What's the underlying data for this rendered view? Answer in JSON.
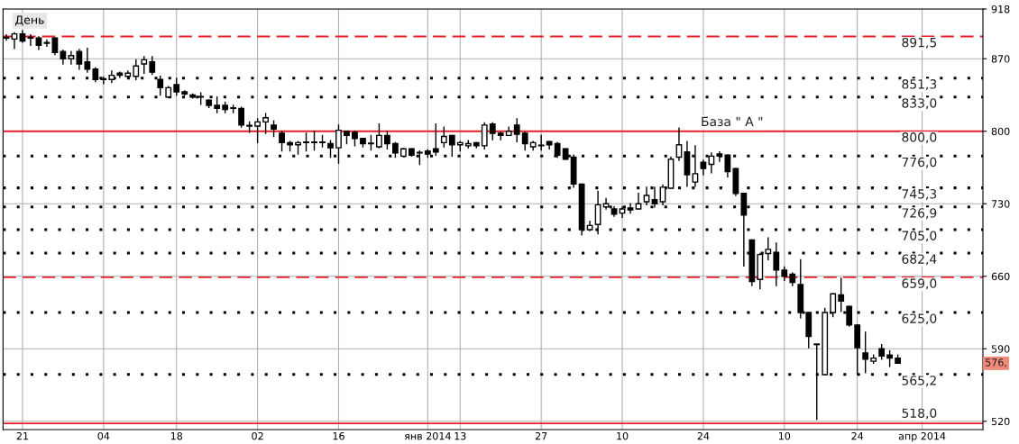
{
  "chart_data": {
    "type": "candlestick",
    "title": "День",
    "categories": [
      null,
      null,
      "21",
      null,
      null,
      null,
      null,
      null,
      null,
      null,
      null,
      null,
      "04",
      null,
      null,
      null,
      null,
      null,
      null,
      null,
      null,
      "18",
      null,
      null,
      null,
      null,
      null,
      null,
      null,
      null,
      null,
      "02",
      null,
      null,
      null,
      null,
      null,
      null,
      null,
      null,
      null,
      "16",
      null,
      null,
      null,
      null,
      null,
      null,
      null,
      null,
      null,
      null,
      "янв 2014",
      null,
      null,
      null,
      "13",
      null,
      null,
      null,
      null,
      null,
      null,
      null,
      null,
      null,
      "27",
      null,
      null,
      null,
      null,
      null,
      null,
      null,
      null,
      null,
      "10",
      null,
      null,
      null,
      null,
      null,
      null,
      null,
      null,
      null,
      "24",
      null,
      null,
      null,
      null,
      null,
      null,
      null,
      null,
      null,
      "10",
      null,
      null,
      null,
      null,
      null,
      null,
      null,
      null,
      "24",
      null,
      null,
      null,
      null,
      null,
      null,
      null,
      "апр 2014",
      null,
      null,
      null,
      null,
      null,
      null,
      null
    ],
    "ohlc": [
      [
        890,
        893,
        888,
        890
      ],
      [
        889,
        895,
        880,
        894
      ],
      [
        894,
        897,
        886,
        887
      ],
      [
        890,
        893,
        883,
        890
      ],
      [
        890,
        891,
        879,
        883
      ],
      [
        885,
        888,
        882,
        885
      ],
      [
        890,
        890,
        874,
        876
      ],
      [
        877,
        878,
        865,
        870
      ],
      [
        870,
        877,
        865,
        873
      ],
      [
        877,
        879,
        860,
        865
      ],
      [
        867,
        880,
        857,
        860
      ],
      [
        860,
        861,
        848,
        850
      ],
      [
        850,
        852,
        846,
        850
      ],
      [
        850,
        858,
        847,
        854
      ],
      [
        856,
        857,
        852,
        854
      ],
      [
        853,
        858,
        852,
        856
      ],
      [
        853,
        869,
        850,
        863
      ],
      [
        865,
        872,
        856,
        869
      ],
      [
        867,
        872,
        855,
        857
      ],
      [
        850,
        853,
        835,
        842
      ],
      [
        833,
        843,
        833,
        842
      ],
      [
        845,
        851,
        835,
        838
      ],
      [
        838,
        839,
        835,
        836
      ],
      [
        835,
        836,
        832,
        833
      ],
      [
        833,
        837,
        826,
        833
      ],
      [
        830,
        830,
        823,
        825
      ],
      [
        825,
        833,
        818,
        822
      ],
      [
        825,
        828,
        818,
        821
      ],
      [
        822,
        825,
        818,
        822
      ],
      [
        822,
        823,
        804,
        806
      ],
      [
        805,
        809,
        799,
        805
      ],
      [
        805,
        812,
        789,
        809
      ],
      [
        809,
        817,
        798,
        813
      ],
      [
        806,
        810,
        795,
        802
      ],
      [
        798,
        800,
        781,
        789
      ],
      [
        789,
        790,
        781,
        787
      ],
      [
        787,
        790,
        778,
        789
      ],
      [
        789,
        798,
        781,
        789
      ],
      [
        789,
        800,
        782,
        789
      ],
      [
        789,
        796,
        785,
        789
      ],
      [
        788,
        791,
        775,
        784
      ],
      [
        784,
        806,
        769,
        801
      ],
      [
        800,
        800,
        788,
        796
      ],
      [
        799,
        800,
        786,
        793
      ],
      [
        793,
        793,
        785,
        788
      ],
      [
        788,
        796,
        782,
        788
      ],
      [
        785,
        807,
        784,
        796
      ],
      [
        796,
        800,
        783,
        788
      ],
      [
        788,
        789,
        775,
        779
      ],
      [
        776,
        783,
        776,
        783
      ],
      [
        783,
        783,
        776,
        777
      ],
      [
        779,
        781,
        768,
        779
      ],
      [
        781,
        782,
        775,
        778
      ],
      [
        783,
        807,
        777,
        780
      ],
      [
        789,
        804,
        785,
        795
      ],
      [
        796,
        796,
        776,
        787
      ],
      [
        787,
        790,
        781,
        789
      ],
      [
        786,
        791,
        784,
        788
      ],
      [
        789,
        789,
        784,
        786
      ],
      [
        786,
        808,
        783,
        806
      ],
      [
        807,
        808,
        792,
        798
      ],
      [
        798,
        799,
        792,
        796
      ],
      [
        796,
        804,
        796,
        800
      ],
      [
        806,
        812,
        790,
        797
      ],
      [
        798,
        799,
        782,
        788
      ],
      [
        785,
        790,
        782,
        789
      ],
      [
        786,
        796,
        782,
        786
      ],
      [
        790,
        790,
        783,
        787
      ],
      [
        788,
        789,
        775,
        777
      ],
      [
        783,
        783,
        773,
        773
      ],
      [
        775,
        777,
        746,
        749
      ],
      [
        749,
        749,
        700,
        705
      ],
      [
        705,
        713,
        704,
        709
      ],
      [
        710,
        742,
        701,
        729
      ],
      [
        727,
        735,
        725,
        730
      ],
      [
        725,
        727,
        718,
        720
      ],
      [
        721,
        727,
        717,
        725
      ],
      [
        726,
        730,
        721,
        724
      ],
      [
        725,
        740,
        725,
        730
      ],
      [
        732,
        746,
        729,
        738
      ],
      [
        734,
        746,
        727,
        730
      ],
      [
        732,
        748,
        729,
        746
      ],
      [
        745,
        775,
        745,
        773
      ],
      [
        775,
        803,
        772,
        787
      ],
      [
        780,
        790,
        747,
        758
      ],
      [
        751,
        786,
        747,
        759
      ],
      [
        770,
        772,
        758,
        764
      ],
      [
        768,
        779,
        760,
        776
      ],
      [
        778,
        780,
        771,
        776
      ],
      [
        777,
        777,
        756,
        761
      ],
      [
        764,
        764,
        738,
        740
      ],
      [
        740,
        740,
        670,
        719
      ],
      [
        695,
        695,
        651,
        655
      ],
      [
        657,
        682,
        648,
        681
      ],
      [
        682,
        697,
        676,
        686
      ],
      [
        683,
        692,
        651,
        666
      ],
      [
        666,
        669,
        656,
        660
      ],
      [
        662,
        663,
        651,
        654
      ],
      [
        652,
        676,
        620,
        625
      ],
      [
        625,
        625,
        591,
        602
      ],
      [
        594,
        594,
        522,
        594
      ],
      [
        565,
        629,
        565,
        625
      ],
      [
        625,
        643,
        621,
        643
      ],
      [
        642,
        658,
        626,
        636
      ],
      [
        631,
        631,
        612,
        613
      ],
      [
        613,
        613,
        566,
        591
      ],
      [
        586,
        606,
        567,
        580
      ],
      [
        578,
        584,
        576,
        581
      ],
      [
        590,
        594,
        580,
        583
      ],
      [
        584,
        588,
        573,
        581
      ],
      [
        581,
        584,
        576,
        576
      ],
      null,
      null,
      null,
      null,
      null,
      null,
      null,
      null,
      null,
      null
    ],
    "ylim": [
      512,
      918
    ],
    "yticks": [
      520,
      590,
      660,
      730,
      800,
      870,
      918
    ],
    "grid": true,
    "ref_lines": [
      {
        "axis": "y",
        "value": 891.5,
        "label": "891,5",
        "color": "#e8202a",
        "line_style": "dashed"
      },
      {
        "axis": "y",
        "value": 851.3,
        "label": "851,3",
        "color": "#000000",
        "line_style": "dotted"
      },
      {
        "axis": "y",
        "value": 833.0,
        "label": "833,0",
        "color": "#000000",
        "line_style": "dotted"
      },
      {
        "axis": "y",
        "value": 800.0,
        "label": "800,0",
        "color": "#e8202a",
        "line_style": "solid"
      },
      {
        "axis": "y",
        "value": 776.0,
        "label": "776,0",
        "color": "#000000",
        "line_style": "dotted"
      },
      {
        "axis": "y",
        "value": 745.3,
        "label": "745,3",
        "color": "#000000",
        "line_style": "dotted"
      },
      {
        "axis": "y",
        "value": 726.9,
        "label": "726,9",
        "color": "#000000",
        "line_style": "dotted"
      },
      {
        "axis": "y",
        "value": 705.0,
        "label": "705,0",
        "color": "#000000",
        "line_style": "dotted"
      },
      {
        "axis": "y",
        "value": 682.4,
        "label": "682,4",
        "color": "#000000",
        "line_style": "dotted"
      },
      {
        "axis": "y",
        "value": 659.0,
        "label": "659,0",
        "color": "#e8202a",
        "line_style": "dashed"
      },
      {
        "axis": "y",
        "value": 625.0,
        "label": "625,0",
        "color": "#000000",
        "line_style": "dotted"
      },
      {
        "axis": "y",
        "value": 565.2,
        "label": "565,2",
        "color": "#000000",
        "line_style": "dotted"
      },
      {
        "axis": "y",
        "value": 518.0,
        "label": "518,0",
        "color": "#e8202a",
        "line_style": "solid"
      }
    ],
    "annotations": [
      "База \" А \"",
      {
        "text": "576,",
        "y": 576
      }
    ]
  }
}
